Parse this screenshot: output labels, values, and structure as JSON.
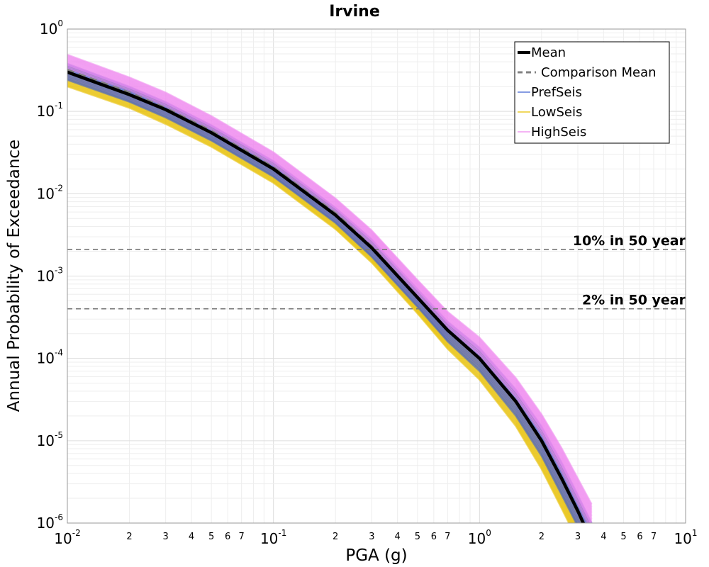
{
  "chart_data": {
    "type": "line",
    "title": "Irvine",
    "xlabel": "PGA (g)",
    "ylabel": "Annual Probability of Exceedance",
    "xscale": "log",
    "yscale": "log",
    "xlim": [
      0.01,
      10
    ],
    "ylim": [
      1e-06,
      1
    ],
    "x_tick_labels": [
      {
        "base": "10",
        "exp": "-2"
      },
      {
        "base": "10",
        "exp": "-1"
      },
      {
        "base": "10",
        "exp": "0"
      },
      {
        "base": "10",
        "exp": "1"
      }
    ],
    "y_tick_labels": [
      {
        "base": "10",
        "exp": "0"
      },
      {
        "base": "10",
        "exp": "-1"
      },
      {
        "base": "10",
        "exp": "-2"
      },
      {
        "base": "10",
        "exp": "-3"
      },
      {
        "base": "10",
        "exp": "-4"
      },
      {
        "base": "10",
        "exp": "-5"
      },
      {
        "base": "10",
        "exp": "-6"
      }
    ],
    "x_minor_tick_labels": [
      "2",
      "3",
      "4",
      "5",
      "6",
      "7"
    ],
    "grid": true,
    "legend_position": "top-right",
    "x": [
      0.01,
      0.02,
      0.03,
      0.05,
      0.1,
      0.2,
      0.3,
      0.5,
      0.7,
      1.0,
      1.5,
      2.0,
      2.5,
      3.0,
      3.5
    ],
    "series": [
      {
        "name": "Mean",
        "color": "#000000",
        "style": "solid-thick",
        "values": [
          0.3,
          0.16,
          0.105,
          0.055,
          0.02,
          0.0055,
          0.0022,
          0.00055,
          0.00022,
          0.0001,
          3e-05,
          1e-05,
          3.5e-06,
          1.4e-06,
          6e-07
        ]
      },
      {
        "name": "Comparison Mean",
        "color": "#808080",
        "style": "dashed",
        "values": [
          0.32,
          0.17,
          0.11,
          0.058,
          0.021,
          0.0058,
          0.0023,
          0.00056,
          0.00022,
          0.0001,
          2.9e-05,
          9.5e-06,
          3.3e-06,
          1.3e-06,
          5.5e-07
        ]
      },
      {
        "name": "PrefSeis",
        "color": "#3f5fd0",
        "style": "band",
        "lower": [
          0.24,
          0.13,
          0.084,
          0.044,
          0.016,
          0.0044,
          0.0017,
          0.00042,
          0.00016,
          7e-05,
          2e-05,
          6.5e-06,
          2.2e-06,
          9e-07,
          4e-07
        ],
        "upper": [
          0.38,
          0.2,
          0.13,
          0.068,
          0.025,
          0.0068,
          0.0028,
          0.0007,
          0.00028,
          0.000135,
          4.2e-05,
          1.5e-05,
          5.5e-06,
          2.2e-06,
          1e-06
        ]
      },
      {
        "name": "LowSeis",
        "color": "#e8c000",
        "style": "band",
        "lower": [
          0.2,
          0.11,
          0.07,
          0.037,
          0.0135,
          0.0037,
          0.00145,
          0.00035,
          0.00013,
          5.5e-05,
          1.5e-05,
          4.5e-06,
          1.5e-06,
          6e-07,
          2e-07
        ],
        "upper": [
          0.3,
          0.16,
          0.105,
          0.055,
          0.02,
          0.0055,
          0.0022,
          0.00055,
          0.00021,
          9.5e-05,
          2.8e-05,
          9.2e-06,
          3.2e-06,
          1.2e-06,
          5e-07
        ]
      },
      {
        "name": "HighSeis",
        "color": "#ee88ee",
        "style": "band",
        "lower": [
          0.33,
          0.18,
          0.115,
          0.06,
          0.022,
          0.006,
          0.0024,
          0.0006,
          0.00024,
          0.00011,
          3.4e-05,
          1.2e-05,
          4.3e-06,
          1.7e-06,
          8e-07
        ],
        "upper": [
          0.49,
          0.26,
          0.17,
          0.088,
          0.032,
          0.0088,
          0.0036,
          0.0009,
          0.00037,
          0.00018,
          5.8e-05,
          2.1e-05,
          8.2e-06,
          3.5e-06,
          1.7e-06
        ]
      }
    ],
    "reference_lines": [
      {
        "label": "10% in 50 year",
        "y": 0.0021
      },
      {
        "label": "2% in 50 year",
        "y": 0.0004
      }
    ]
  }
}
